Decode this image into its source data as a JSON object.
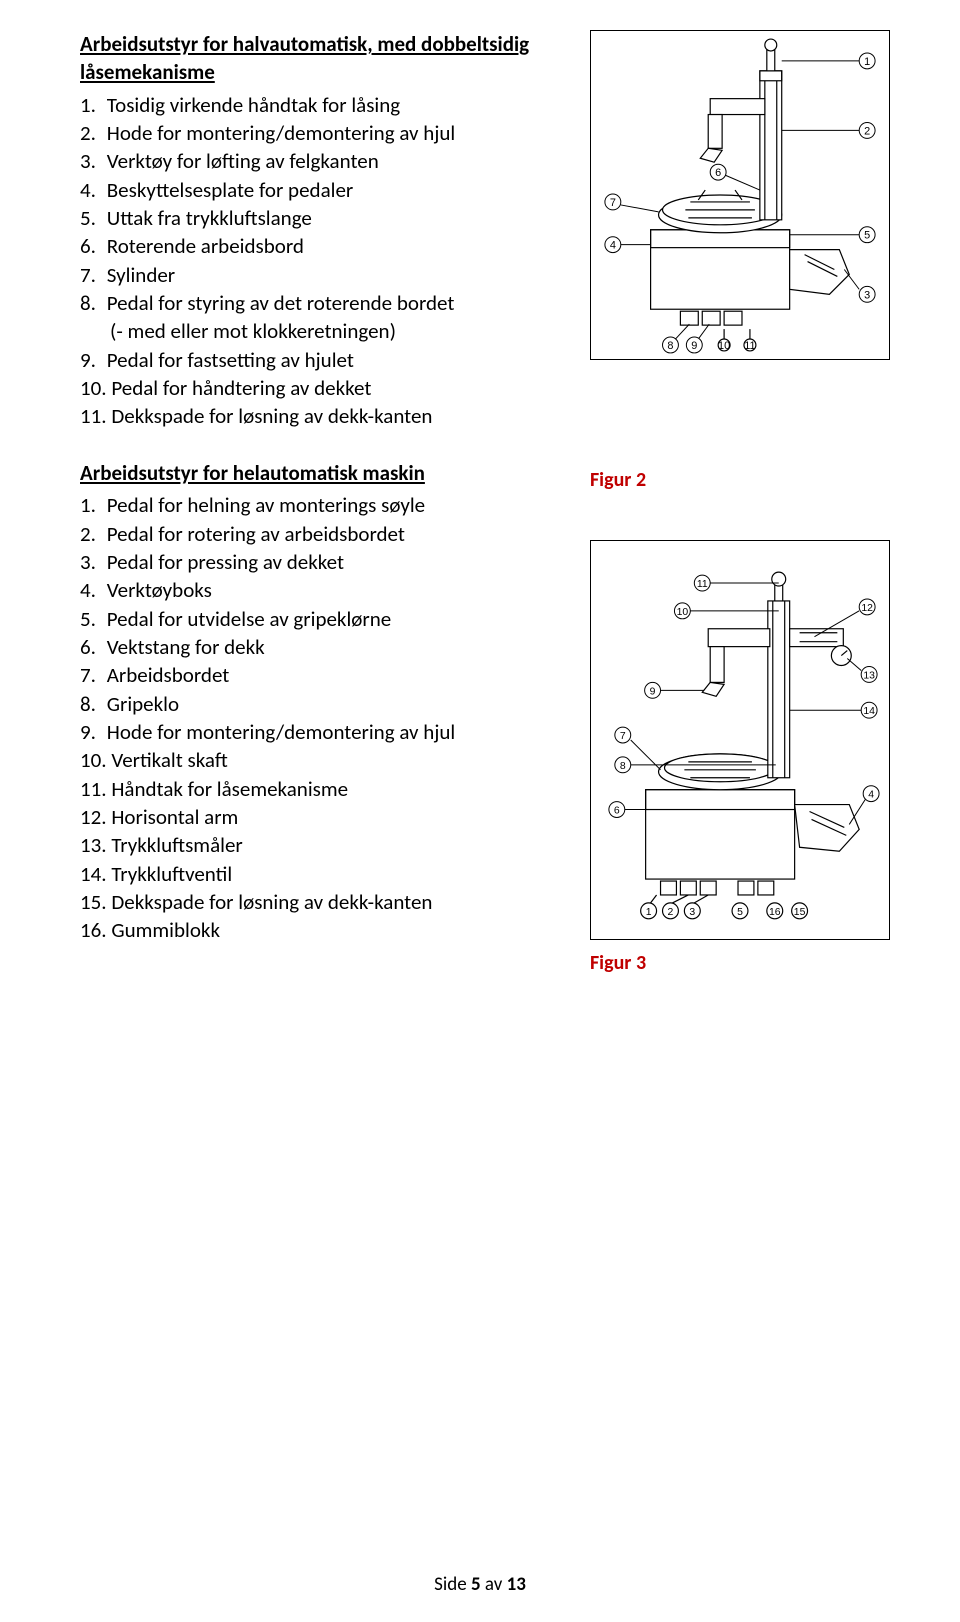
{
  "section1": {
    "title": "Arbeidsutstyr for halvautomatisk, med dobbeltsidig låsemekanisme",
    "items": [
      "Tosidig virkende håndtak for låsing",
      "Hode for montering/demontering av hjul",
      "Verktøy for løfting av felgkanten",
      "Beskyttelsesplate for pedaler",
      "Uttak fra trykkluftslange",
      "Roterende arbeidsbord",
      "Sylinder",
      "Pedal for styring av det roterende bordet\n(- med eller mot klokkeretningen)",
      "Pedal for fastsetting av hjulet",
      "Pedal for håndtering av dekket",
      "Dekkspade for løsning av dekk-kanten"
    ]
  },
  "section2": {
    "title": "Arbeidsutstyr for helautomatisk maskin",
    "items": [
      "Pedal for helning av monterings søyle",
      "Pedal for rotering av arbeidsbordet",
      "Pedal for pressing av dekket",
      "Verktøyboks",
      "Pedal for utvidelse av gripeklørne",
      "Vektstang for dekk",
      "Arbeidsbordet",
      "Gripeklo",
      "Hode for montering/demontering av hjul",
      "Vertikalt skaft",
      "Håndtak for låsemekanisme",
      "Horisontal arm",
      "Trykkluftsmåler",
      "Trykkluftventil",
      "Dekkspade for løsning av dekk-kanten",
      "Gummiblokk"
    ]
  },
  "figures": {
    "fig2": "Figur 2",
    "fig3": "Figur 3"
  },
  "diagram1": {
    "callouts": [
      "1",
      "2",
      "3",
      "4",
      "5",
      "6",
      "7",
      "8",
      "9",
      "10",
      "11"
    ],
    "strokeColor": "#000000",
    "calloutColor": "#000000"
  },
  "diagram2": {
    "callouts": [
      "1",
      "2",
      "3",
      "4",
      "5",
      "6",
      "7",
      "8",
      "9",
      "10",
      "11",
      "12",
      "13",
      "14",
      "15",
      "16"
    ],
    "strokeColor": "#000000",
    "calloutColor": "#000000"
  },
  "footer": {
    "prefix": "Side ",
    "page": "5",
    "middle": " av ",
    "total": "13"
  },
  "colors": {
    "text": "#000000",
    "figureLabel": "#c00000",
    "background": "#ffffff"
  }
}
